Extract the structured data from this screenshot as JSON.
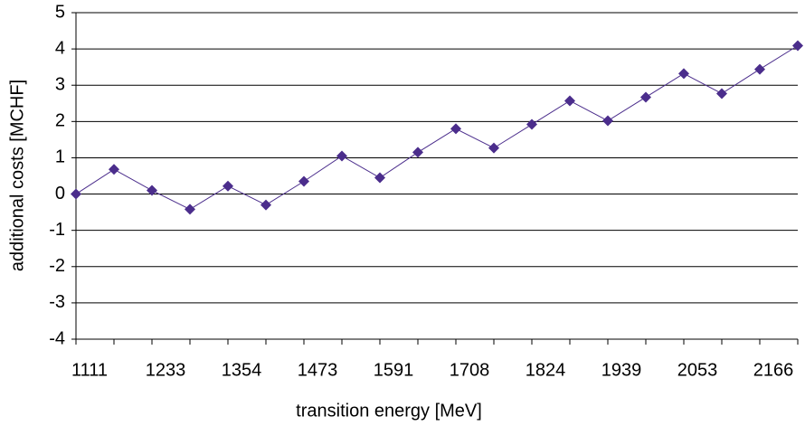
{
  "chart_data": {
    "type": "line",
    "x_label": "transition energy [MeV]",
    "y_label": "additional costs [MCHF]",
    "categories": [
      "1111",
      null,
      "1233",
      null,
      "1354",
      null,
      "1473",
      null,
      "1591",
      null,
      "1708",
      null,
      "1824",
      null,
      "1939",
      null,
      "2053",
      null,
      "2166",
      null
    ],
    "series": [
      {
        "name": "additional costs",
        "color": "#4b2d8c",
        "values": [
          0,
          0.68,
          0.1,
          -0.42,
          0.22,
          -0.3,
          0.35,
          1.05,
          0.45,
          1.15,
          1.8,
          1.27,
          1.92,
          2.57,
          2.02,
          2.67,
          3.32,
          2.77,
          3.44,
          4.09
        ]
      }
    ],
    "ylim": [
      -4,
      5
    ],
    "yticks": [
      -4,
      -3,
      -2,
      -1,
      0,
      1,
      2,
      3,
      4,
      5
    ],
    "grid": true
  }
}
